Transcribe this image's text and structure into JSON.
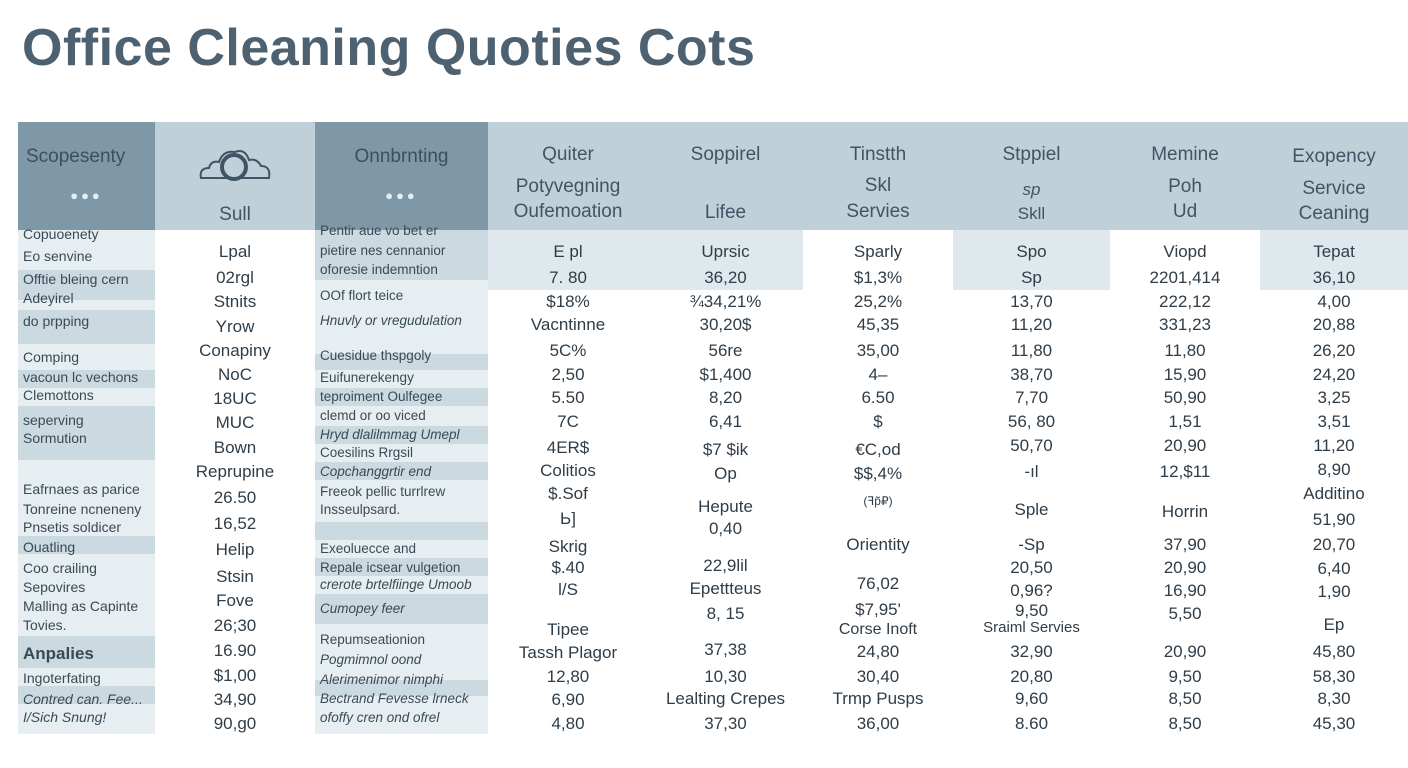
{
  "title": "Office Cleaning Quoties Cots",
  "columns": [
    {
      "header": [
        "Scopesenty"
      ],
      "dots": "●●●",
      "rows": [
        "Copuoenety",
        "Eo senvine",
        "Offtie bleing cern",
        "Adeyirel",
        "do prpping",
        "Comping",
        "vacoun lc vechons",
        "Clemottons",
        "seperving",
        "Sormution",
        "Eafrnaes as parice",
        "Tonreine ncneneny",
        "Pnsetis soldicer",
        "Ouatling",
        "Coo crailing",
        "Sepovires",
        "Malling as Capinte",
        "Tovies.",
        "Anpalies",
        "Ingoterfating",
        "Contred can. Fee...",
        "I/Sich Snung!"
      ]
    },
    {
      "header": [
        "Sull"
      ],
      "rows": [
        "Lpal",
        "02rgl",
        "Stnits",
        "Yrow",
        "Conapiny",
        "NoC",
        "18UC",
        "MUC",
        "Bown",
        "Reprupine",
        "26.50",
        "16,52",
        "Helip",
        "Stsin",
        "Fove",
        "26;30",
        "16.90",
        "$1,00",
        "34,90",
        "90,g0"
      ]
    },
    {
      "header": [
        "Onnbrnting"
      ],
      "dots": "●●●",
      "rows": [
        "Pentir aue vo bet er",
        "pietire nes cennanior",
        "oforesie indemntion",
        "OOf flort teice",
        "Hnuvly or vregudulation",
        "Cuesidue thspgoly",
        "Euifunerekengy",
        "teproiment Oulfegee",
        "clemd or oo viced",
        "Hryd dlalilmmag Umepl",
        "Coesilins Rrgsil",
        "Copchanggrtir end",
        "Freeok pellic turrlrew",
        "Insseulpsard.",
        "Exeoluecce and",
        "Repale icsear vulgetion",
        "crerote brtelfiinge Umoob",
        "Cumopey feer",
        "Repumseationion",
        "Pogmimnol oond",
        "Alerimenimor nimphi",
        "Bectrand Fevesse lrneck",
        "ofoffy cren ond ofrel"
      ]
    },
    {
      "header": [
        "Quiter",
        "Potyvegning",
        "Oufemoation"
      ],
      "rows": [
        "E pl",
        "7. 80",
        "$18%",
        "Vacntinne",
        "5C%",
        "2,50",
        "5.50",
        "7C",
        "4ER$",
        "Colitios",
        "$.Sof",
        "Ь]",
        "Skrig",
        "$.40",
        "l/S",
        "Tipee",
        "Tassh Plagor",
        "12,80",
        "6,90",
        "4,80"
      ]
    },
    {
      "header": [
        "Soppirel",
        "",
        "Lifee"
      ],
      "rows": [
        "Uprsic",
        "36,20",
        "¾34,21%",
        "30,20$",
        "56re",
        "$1,400",
        "8,20",
        "6,41",
        "$7 $ik",
        "Op",
        "Hepute",
        "0,40",
        "22,9lil",
        "Epettteus",
        "8, 15",
        "37,38",
        "10,30",
        "Lealting Crepes",
        "37,30"
      ]
    },
    {
      "header": [
        "Tinstth",
        "Skl",
        "Servies"
      ],
      "rows": [
        "Sparly",
        "$1,3%",
        "25,2%",
        "45,35",
        "35,00",
        "4–",
        "6.50",
        "$",
        "€C,od",
        "$$,4%",
        "(ꟻp̃₽)",
        "Orientity",
        "76,02",
        "$7,95'",
        "Corse Inoft",
        "24,80",
        "30,40",
        "Trmp Pusps",
        "36,00"
      ]
    },
    {
      "header": [
        "Stppiel",
        "sp",
        "Skll"
      ],
      "rows": [
        "Spo",
        "Sp",
        "13,70",
        "11,20",
        "11,80",
        "38,70",
        "7,70",
        "56, 80",
        "50,70",
        "-ıl",
        "Sple",
        "-Sp",
        "20,50",
        "0,96?",
        "9,50",
        "Sraiml Servies",
        "32,90",
        "20,80",
        "9,60",
        "8.60"
      ]
    },
    {
      "header": [
        "Memine",
        "Poh",
        "Ud"
      ],
      "rows": [
        "Viopd",
        "2201,414",
        "222,12",
        "331,23",
        "11,80",
        "15,90",
        "50,90",
        "1,51",
        "20,90",
        "12,$11",
        "Horrin",
        "37,90",
        "20,90",
        "16,90",
        "5,50",
        "20,90",
        "9,50",
        "8,50",
        "8,50"
      ]
    },
    {
      "header": [
        "Exopency",
        "Service",
        "Ceaning"
      ],
      "rows": [
        "Tepat",
        "36,10",
        "4,00",
        "20,88",
        "26,20",
        "24,20",
        "3,25",
        "3,51",
        "11,20",
        "8,90",
        "Additino",
        "51,90",
        "20,70",
        "6,40",
        "1,90",
        "Ep",
        "45,80",
        "58,30",
        "8,30",
        "45,30"
      ]
    }
  ]
}
